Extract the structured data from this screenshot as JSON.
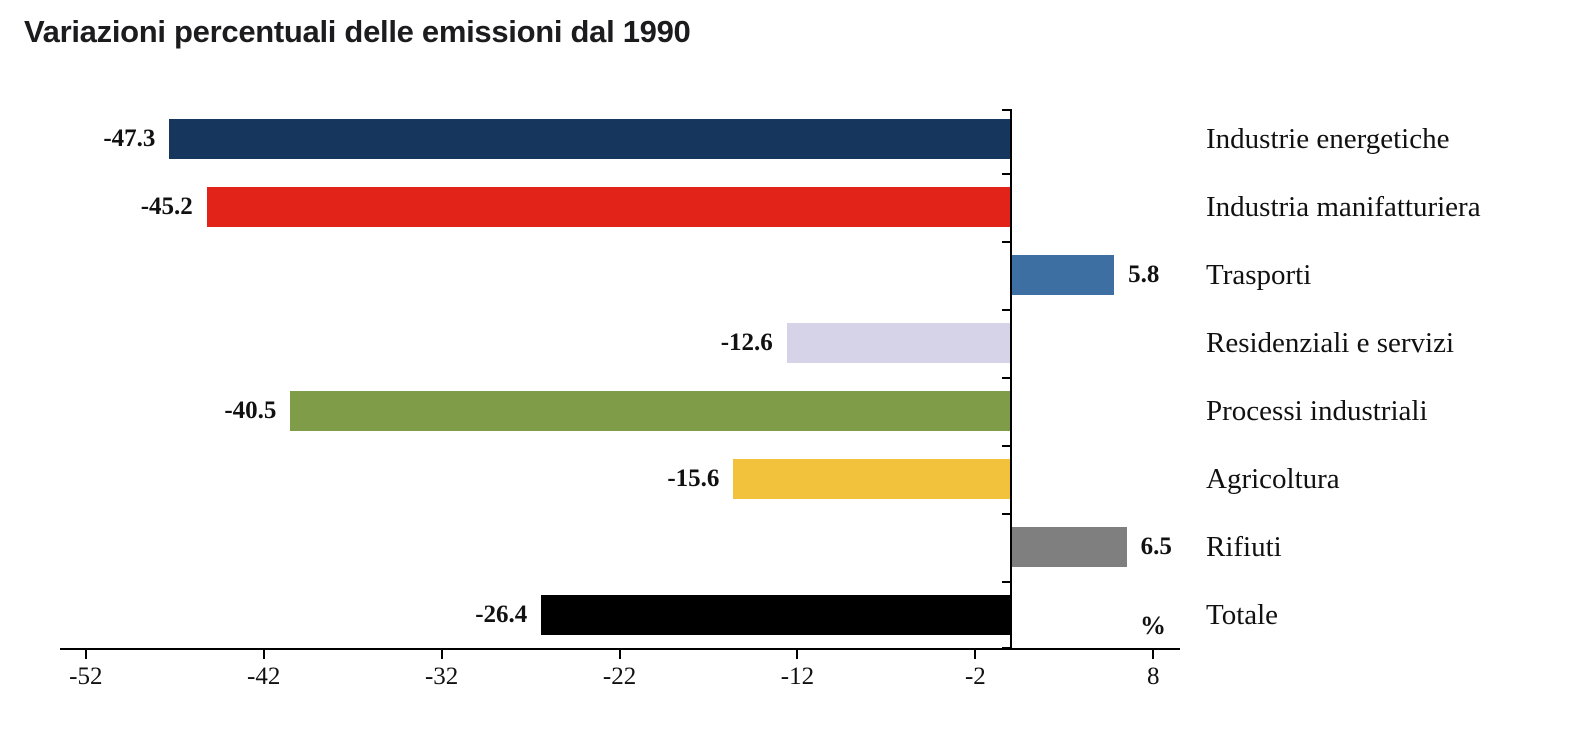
{
  "title": "Variazioni percentuali delle emissioni dal 1990",
  "chart_data": {
    "type": "bar",
    "orientation": "horizontal",
    "title": "Variazioni percentuali delle emissioni dal 1990",
    "unit_label": "%",
    "categories": [
      "Industrie energetiche",
      "Industria manifatturiera",
      "Trasporti",
      "Residenziali e servizi",
      "Processi industriali",
      "Agricoltura",
      "Rifiuti",
      "Totale"
    ],
    "values": [
      -47.3,
      -45.2,
      5.8,
      -12.6,
      -40.5,
      -15.6,
      6.5,
      -26.4
    ],
    "value_labels": [
      "-47.3",
      "-45.2",
      "5.8",
      "-12.6",
      "-40.5",
      "-15.6",
      "6.5",
      "-26.4"
    ],
    "colors": [
      "#17365d",
      "#e2231a",
      "#3e6fa3",
      "#d6d2e8",
      "#7f9c49",
      "#f2c23c",
      "#7f7f7f",
      "#000000"
    ],
    "xlim": [
      -53,
      9.5
    ],
    "x_ticks": [
      -52,
      -42,
      -32,
      -22,
      -12,
      -2,
      8
    ],
    "x_tick_labels": [
      "-52",
      "-42",
      "-32",
      "-22",
      "-12",
      "-2",
      "8"
    ],
    "zero_line": true,
    "grid": false,
    "legend": "none"
  }
}
